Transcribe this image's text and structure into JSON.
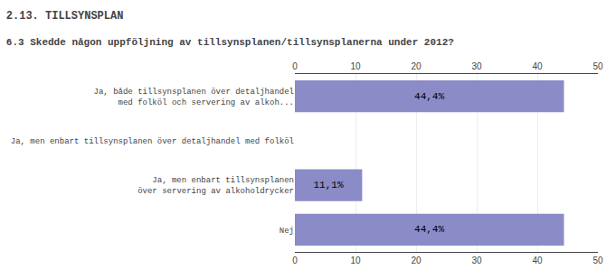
{
  "chart_data": {
    "type": "bar",
    "orientation": "horizontal",
    "title": "2.13. TILLSYNSPLAN",
    "subtitle": "6.3 Skedde någon uppföljning av tillsynsplanen/tillsynsplanerna under 2012?",
    "categories": [
      "Nej",
      "Ja, men enbart tillsynsplanen\növer servering av alkoholdrycker",
      "Ja, men enbart tillsynsplanen över detaljhandel med folköl",
      "Ja, både tillsynsplanen över detaljhandel\nmed folköl och servering av alkoh..."
    ],
    "values": [
      44.4,
      11.1,
      0.0,
      44.4
    ],
    "value_labels": [
      "44,4%",
      "11,1%",
      null,
      "44,4%"
    ],
    "data_labels": true,
    "color": "#8b8bc8",
    "xlim": [
      0,
      50
    ],
    "xticks": [
      0,
      10,
      20,
      30,
      40,
      50
    ],
    "grid": true
  }
}
